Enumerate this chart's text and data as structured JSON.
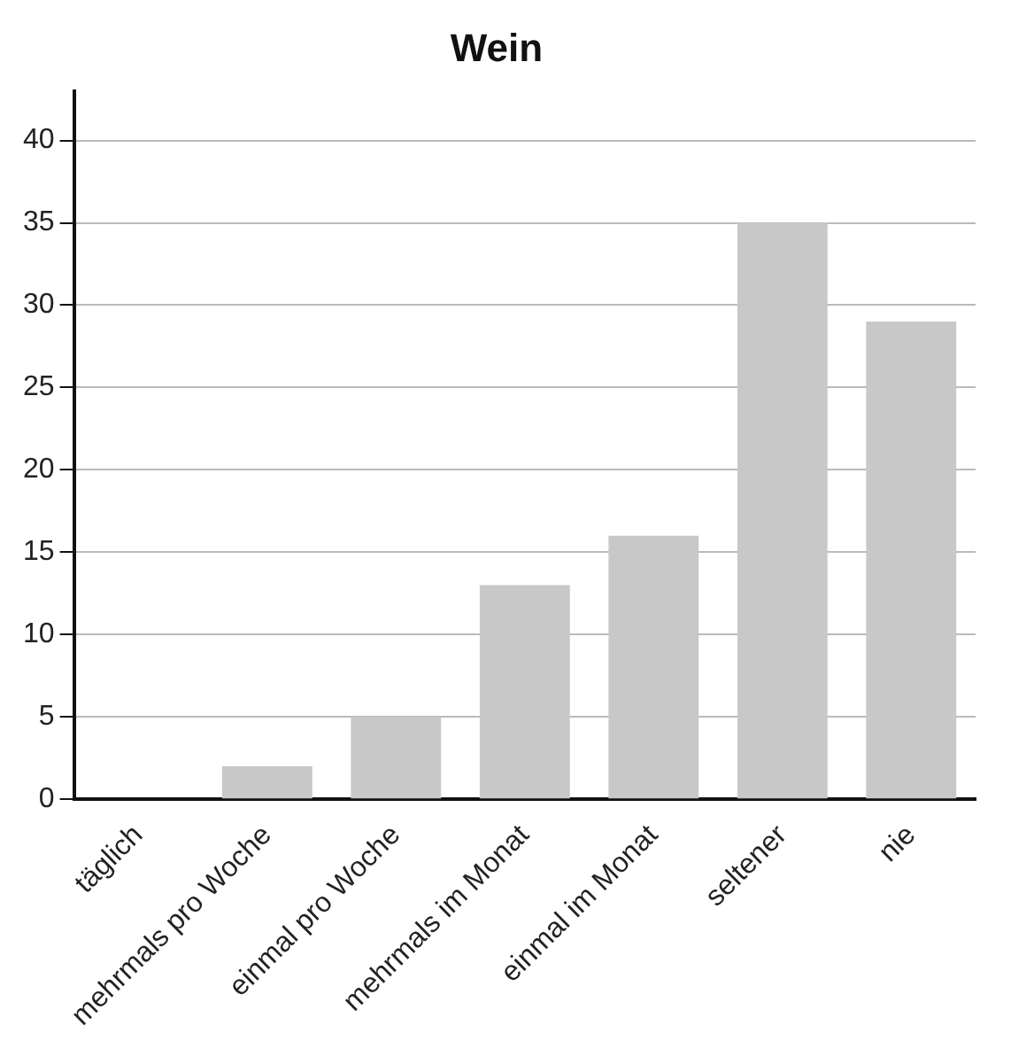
{
  "chart_data": {
    "type": "bar",
    "title": "Wein",
    "categories": [
      "täglich",
      "mehrmals pro Woche",
      "einmal pro Woche",
      "mehrmals im Monat",
      "einmal im Monat",
      "seltener",
      "nie"
    ],
    "values": [
      0,
      2,
      5,
      13,
      16,
      35,
      29
    ],
    "color": "#c8c8c8",
    "ylim": [
      0,
      43
    ],
    "yticks": [
      0,
      5,
      10,
      15,
      20,
      25,
      30,
      35,
      40
    ],
    "grid": "y",
    "legend": false
  }
}
